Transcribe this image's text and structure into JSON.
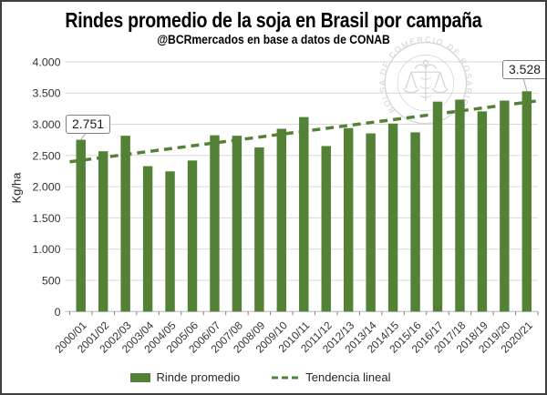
{
  "header": {
    "title": "Rindes promedio de la soja en Brasil por campaña",
    "subtitle": "@BCRmercados en base a datos de CONAB"
  },
  "chart_data": {
    "type": "bar",
    "title": "Rindes promedio de la soja en Brasil por campaña",
    "subtitle": "@BCRmercados en base a datos de CONAB",
    "categories": [
      "2000/01",
      "2001/02",
      "2002/03",
      "2003/04",
      "2004/05",
      "2005/06",
      "2006/07",
      "2007/08",
      "2008/09",
      "2009/10",
      "2010/11",
      "2011/12",
      "2012/13",
      "2013/14",
      "2014/15",
      "2015/16",
      "2016/17",
      "2017/18",
      "2018/19",
      "2019/20",
      "2020/21"
    ],
    "series": [
      {
        "name": "Rinde promedio",
        "values": [
          2751,
          2567,
          2816,
          2329,
          2245,
          2419,
          2823,
          2816,
          2629,
          2927,
          3115,
          2651,
          2938,
          2854,
          3011,
          2870,
          3362,
          3394,
          3206,
          3379,
          3528
        ]
      }
    ],
    "trendline": {
      "name": "Tendencia lineal",
      "style": "dashed-linear-regression"
    },
    "xlabel": "",
    "ylabel": "Kg/ha",
    "ylim": [
      0,
      4000
    ],
    "ytick_step": 500,
    "ytick_labels": [
      "0",
      "500",
      "1.000",
      "1.500",
      "2.000",
      "2.500",
      "3.000",
      "3.500",
      "4.000"
    ],
    "grid": true,
    "legend_position": "bottom",
    "callouts": [
      {
        "index": 0,
        "label": "2.751"
      },
      {
        "index": 20,
        "label": "3.528"
      }
    ]
  },
  "watermark": {
    "text": "BOLSA DE COMERCIO DE ROSARIO"
  },
  "colors": {
    "bar": "#538135",
    "trend": "#538135",
    "grid": "#d9d9d9",
    "axis_line": "#bfbfbf",
    "tick": "#7f7f7f",
    "tick_text": "#333333",
    "watermark": "#c9c9c9",
    "callout_border": "#7f7f7f",
    "leader": "#a6a6a6",
    "frame_border": "#3f3f3f"
  }
}
